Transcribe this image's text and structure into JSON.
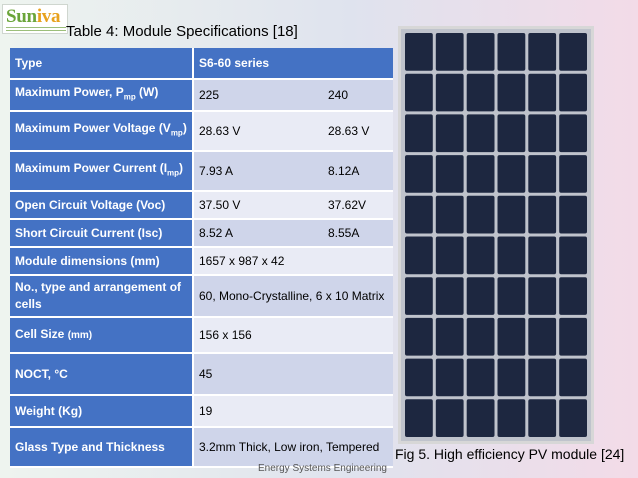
{
  "logo": {
    "word_main": "Sun",
    "word_accent": "iva"
  },
  "table": {
    "title": "Table 4: Module Specifications [18]",
    "rows": [
      {
        "label": "Type",
        "v1": "S6-60 series",
        "v2": ""
      },
      {
        "label": "Maximum Power, P",
        "label_sub": "mp",
        "label_tail": " (W)",
        "v1": "225",
        "v2": "240"
      },
      {
        "label": "Maximum Power Voltage (V",
        "label_sub": "mp",
        "label_tail": ")",
        "v1": "28.63 V",
        "v2": "28.63 V"
      },
      {
        "label": "Maximum Power Current (I",
        "label_sub": "mp",
        "label_tail": ")",
        "v1": "7.93 A",
        "v2": "8.12A"
      },
      {
        "label": "Open Circuit Voltage (Voc)",
        "v1": "37.50 V",
        "v2": "37.62V"
      },
      {
        "label": "Short Circuit Current (Isc)",
        "v1": "8.52 A",
        "v2": "8.55A"
      },
      {
        "label": "Module dimensions (mm)",
        "v1": "1657 x 987 x 42",
        "v2": ""
      },
      {
        "label": "No., type and arrangement of cells",
        "v1": "60, Mono-Crystalline, 6 x 10 Matrix",
        "v2": ""
      },
      {
        "label": "Cell Size ",
        "label_small": "(mm)",
        "v1": "156 x 156",
        "v2": ""
      },
      {
        "label": "NOCT, °C",
        "v1": "45",
        "v2": ""
      },
      {
        "label": "Weight (Kg)",
        "v1": "19",
        "v2": ""
      },
      {
        "label": "Glass Type and Thickness",
        "v1": "3.2mm Thick, Low iron, Tempered",
        "v2": ""
      }
    ]
  },
  "figure": {
    "caption": "Fig 5. High efficiency PV module [24]",
    "cell_grid": {
      "columns": 6,
      "rows": 10
    },
    "colors": {
      "frame": "#d7d7d7",
      "cell": "#1d2740",
      "gap": "#bfc3cc"
    }
  },
  "footer": "Energy Systems Engineering",
  "colors": {
    "header_blue": "#4472c4",
    "row_light": "#e9ebf5",
    "row_dark": "#cfd5ea"
  }
}
